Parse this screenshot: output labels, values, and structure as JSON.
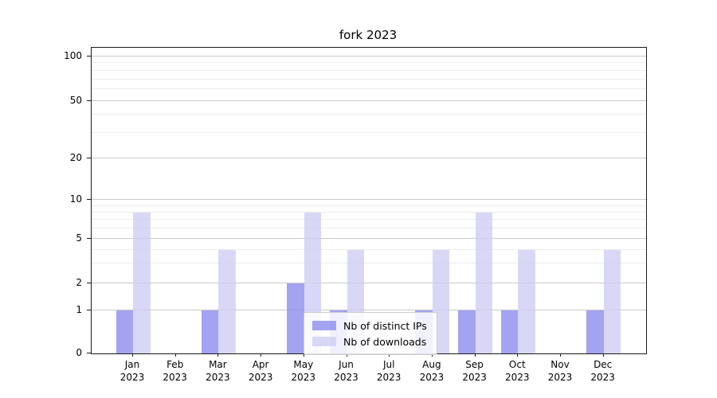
{
  "chart_data": {
    "type": "bar",
    "title": "fork 2023",
    "categories": [
      "Jan",
      "Feb",
      "Mar",
      "Apr",
      "May",
      "Jun",
      "Jul",
      "Aug",
      "Sep",
      "Oct",
      "Nov",
      "Dec"
    ],
    "year_label": "2023",
    "series": [
      {
        "name": "Nb of distinct IPs",
        "color": "rgba(140,140,238,0.8)",
        "values": [
          1,
          0,
          1,
          0,
          2,
          1,
          0,
          1,
          1,
          1,
          0,
          1
        ]
      },
      {
        "name": "Nb of downloads",
        "color": "rgba(206,206,244,0.8)",
        "values": [
          8,
          0,
          4,
          0,
          8,
          4,
          0,
          4,
          8,
          4,
          0,
          4
        ]
      }
    ],
    "y_axis": {
      "scale": "symlog",
      "major_ticks": [
        0,
        1,
        2,
        5,
        10,
        20,
        50,
        100
      ],
      "minor_ticks": [
        3,
        4,
        6,
        7,
        8,
        9,
        30,
        40,
        60,
        70,
        80,
        90
      ]
    },
    "legend": {
      "position": "lower center",
      "entries": [
        "Nb of distinct IPs",
        "Nb of downloads"
      ]
    },
    "grid": true
  }
}
